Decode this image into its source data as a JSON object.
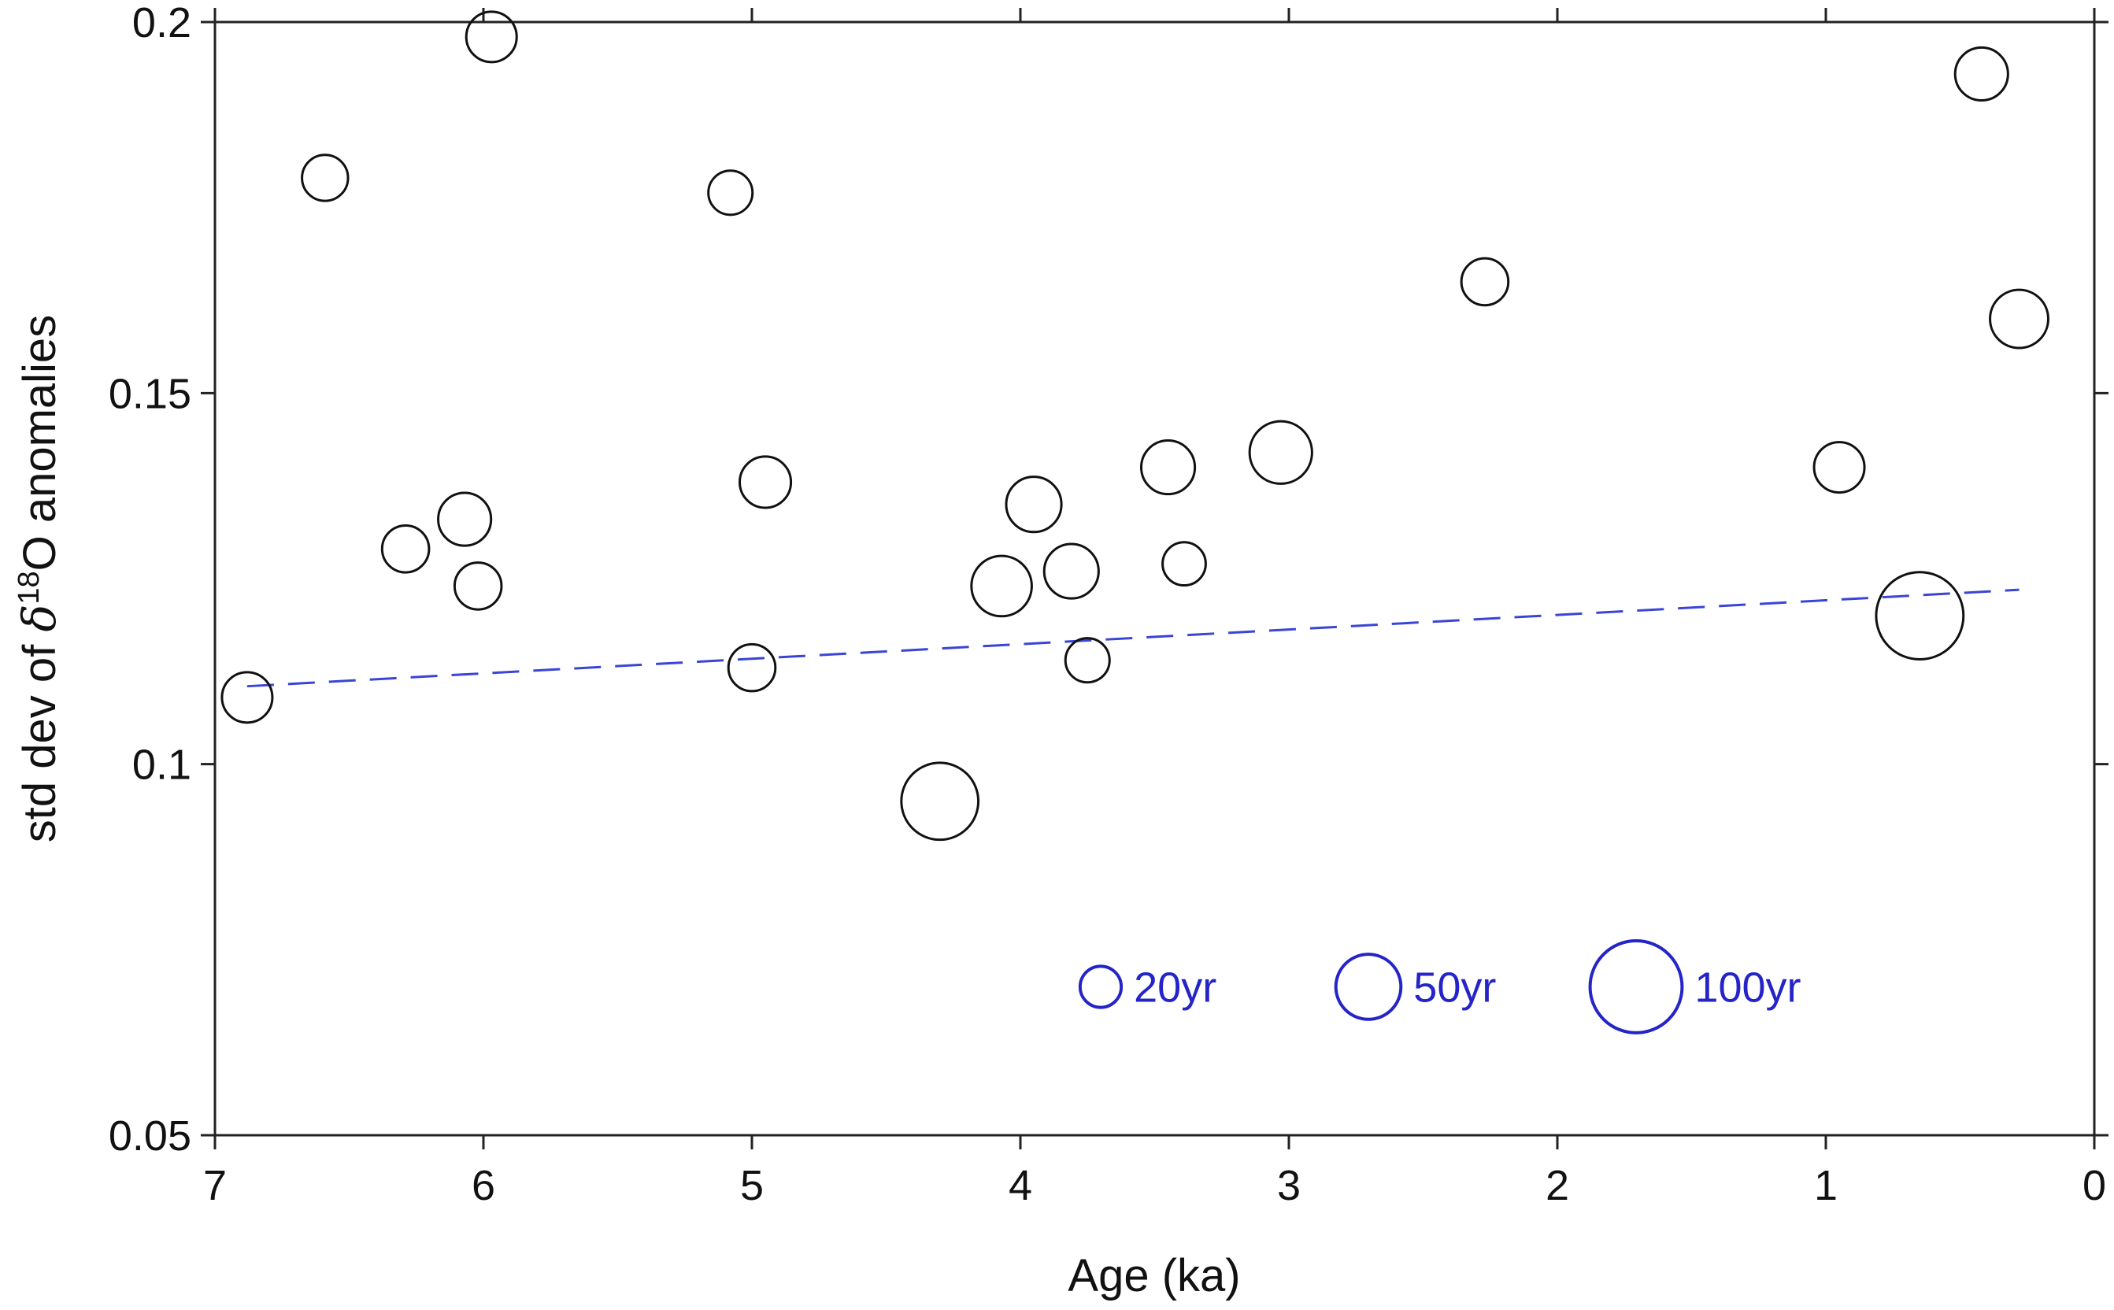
{
  "chart_data": {
    "type": "scatter",
    "title": "",
    "xlabel": "Age (ka)",
    "ylabel": {
      "prefix": "std dev of ",
      "symbol": "δ",
      "superscript": "18",
      "suffix": "O anomalies"
    },
    "xlim": [
      7,
      0
    ],
    "ylim": [
      0.05,
      0.2
    ],
    "x_ticks": [
      "7",
      "6",
      "5",
      "4",
      "3",
      "2",
      "1",
      "0"
    ],
    "y_ticks": [
      "0.05",
      "0.1",
      "0.15",
      "0.2"
    ],
    "grid": false,
    "marker_size_unit": "yr",
    "points": [
      {
        "x": 6.88,
        "y": 0.109,
        "size": 30
      },
      {
        "x": 6.59,
        "y": 0.179,
        "size": 25
      },
      {
        "x": 6.29,
        "y": 0.129,
        "size": 26
      },
      {
        "x": 6.07,
        "y": 0.133,
        "size": 33
      },
      {
        "x": 6.02,
        "y": 0.124,
        "size": 26
      },
      {
        "x": 5.97,
        "y": 0.198,
        "size": 30
      },
      {
        "x": 5.08,
        "y": 0.177,
        "size": 23
      },
      {
        "x": 5.0,
        "y": 0.113,
        "size": 26
      },
      {
        "x": 4.95,
        "y": 0.138,
        "size": 31
      },
      {
        "x": 4.3,
        "y": 0.095,
        "size": 70
      },
      {
        "x": 4.07,
        "y": 0.124,
        "size": 43
      },
      {
        "x": 3.95,
        "y": 0.135,
        "size": 36
      },
      {
        "x": 3.81,
        "y": 0.126,
        "size": 35
      },
      {
        "x": 3.75,
        "y": 0.114,
        "size": 23
      },
      {
        "x": 3.45,
        "y": 0.14,
        "size": 34
      },
      {
        "x": 3.39,
        "y": 0.127,
        "size": 22
      },
      {
        "x": 3.03,
        "y": 0.142,
        "size": 46
      },
      {
        "x": 2.27,
        "y": 0.165,
        "size": 26
      },
      {
        "x": 0.95,
        "y": 0.14,
        "size": 30
      },
      {
        "x": 0.65,
        "y": 0.12,
        "size": 90
      },
      {
        "x": 0.42,
        "y": 0.193,
        "size": 33
      },
      {
        "x": 0.28,
        "y": 0.16,
        "size": 40
      }
    ],
    "trend_line": {
      "style": "dashed",
      "color": "#3a45d6",
      "x": [
        6.88,
        0.28
      ],
      "y": [
        0.1105,
        0.1235
      ]
    },
    "legend": {
      "placement": "bottom-center",
      "color": "#2424c8",
      "entries": [
        {
          "label": "20yr",
          "size": 20
        },
        {
          "label": "50yr",
          "size": 50
        },
        {
          "label": "100yr",
          "size": 100
        }
      ]
    },
    "colors": {
      "axis": "#222222",
      "marker_edge": "#111111",
      "legend": "#2424c8",
      "trend": "#3a45d6"
    }
  }
}
